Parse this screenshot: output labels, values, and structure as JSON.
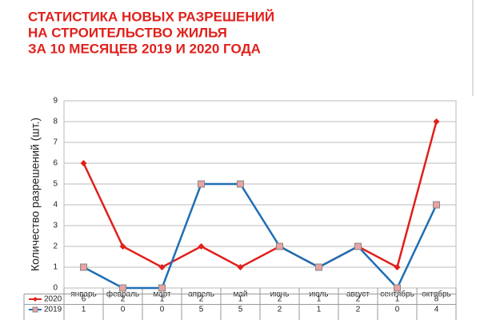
{
  "chart_data": {
    "type": "line",
    "title_lines": [
      "СТАТИСТИКА НОВЫХ РАЗРЕШЕНИЙ",
      "НА СТРОИТЕЛЬСТВО ЖИЛЬЯ",
      "ЗА 10 МЕСЯЦЕВ 2019 И 2020 ГОДА"
    ],
    "y_label": "Количество разрешений (шт.)",
    "categories": [
      "январь",
      "февраль",
      "март",
      "апрель",
      "май",
      "июнь",
      "июль",
      "август",
      "сентябрь",
      "октябрь"
    ],
    "series": [
      {
        "name": "2020",
        "color": "#e0201b",
        "marker": "diamond",
        "marker_color": "#e0201b",
        "values": [
          6,
          2,
          1,
          2,
          1,
          2,
          1,
          2,
          1,
          8
        ]
      },
      {
        "name": "2019",
        "color": "#1f6fb4",
        "marker": "square",
        "marker_color": "#e8a3a3",
        "values": [
          1,
          0,
          0,
          5,
          5,
          2,
          1,
          2,
          0,
          4
        ]
      }
    ],
    "ylim": [
      0,
      9
    ],
    "yticks": [
      0,
      1,
      2,
      3,
      4,
      5,
      6,
      7,
      8,
      9
    ],
    "grid": true,
    "data_table": true
  }
}
